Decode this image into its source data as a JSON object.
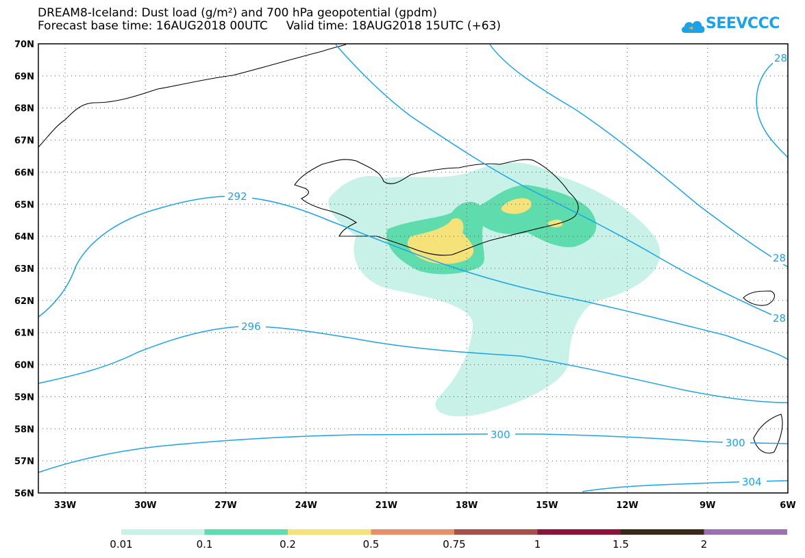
{
  "title": {
    "line1": "DREAM8-Iceland: Dust load (g/m²) and 700 hPa geopotential (gpdm)",
    "line2": "Forecast base time: 16AUG2018 00UTC     Valid time: 18AUG2018 15UTC (+63)"
  },
  "logo": {
    "text": "SEEVCCC",
    "icon": "cloud-icon"
  },
  "axes": {
    "lat_labels": [
      "70N",
      "69N",
      "68N",
      "67N",
      "66N",
      "65N",
      "64N",
      "63N",
      "62N",
      "61N",
      "60N",
      "59N",
      "58N",
      "57N",
      "56N"
    ],
    "lon_labels": [
      "33W",
      "30W",
      "27W",
      "24W",
      "21W",
      "18W",
      "15W",
      "12W",
      "9W",
      "6W"
    ]
  },
  "contours": {
    "color": "#1aa3e8",
    "labels": [
      "292",
      "296",
      "300",
      "300",
      "304",
      "28",
      "28",
      "28"
    ]
  },
  "colorbar": {
    "colors": [
      "#c8f2e8",
      "#5fdcae",
      "#f5e37a",
      "#e8906c",
      "#a8504a",
      "#8c1438",
      "#3a2818",
      "#9a72b0"
    ],
    "labels": [
      "0.01",
      "0.1",
      "0.2",
      "0.5",
      "0.75",
      "1",
      "1.5",
      "2"
    ]
  },
  "dust_colors": {
    "low": "#c8f2e8",
    "mid": "#5fdcae",
    "high": "#f5e37a"
  }
}
